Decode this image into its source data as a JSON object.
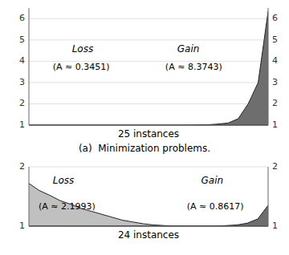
{
  "chart_data": [
    {
      "type": "area",
      "title": "(a)  Minimization problems.",
      "xlabel": "25 instances",
      "x": [
        1,
        2,
        3,
        4,
        5,
        6,
        7,
        8,
        9,
        10,
        11,
        12,
        13,
        14,
        15,
        16,
        17,
        18,
        19,
        20,
        21,
        22,
        23,
        24,
        25
      ],
      "xlim": [
        1,
        25
      ],
      "ylim": [
        1,
        6.5
      ],
      "yticks": [
        1,
        2,
        3,
        4,
        5,
        6
      ],
      "baseline": 1.0,
      "grid": true,
      "tick_labels": "y",
      "annotations": [
        "Loss",
        "(A ≈ 0.3451)",
        "Gain",
        "(A ≈ 8.3743)"
      ],
      "series": [
        {
          "color": "#6e6e6e",
          "values": [
            1.0,
            1.0,
            1.0,
            1.0,
            1.0,
            1.0,
            1.0,
            1.0,
            1.0,
            1.0,
            1.0,
            1.0,
            1.0,
            1.0,
            1.0,
            1.0,
            1.0,
            1.01,
            1.02,
            1.05,
            1.1,
            1.3,
            2.0,
            3.0,
            6.35
          ]
        }
      ]
    },
    {
      "type": "area",
      "xlabel": "24 instances",
      "x": [
        1,
        2,
        3,
        4,
        5,
        6,
        7,
        8,
        9,
        10,
        11,
        12,
        13,
        14,
        15,
        16,
        17,
        18,
        19,
        20,
        21,
        22,
        23,
        24
      ],
      "xlim": [
        1,
        24
      ],
      "ylim": [
        1,
        2
      ],
      "yticks": [
        1,
        2
      ],
      "baseline": 1.0,
      "grid": true,
      "tick_labels": "y",
      "annotations": [
        "Loss",
        "(A ≈ 2.1993)",
        "Gain",
        "(A ≈ 0.8617)"
      ],
      "series": [
        {
          "color": "#c0c0c0",
          "values": [
            1.72,
            1.6,
            1.52,
            1.43,
            1.37,
            1.3,
            1.25,
            1.2,
            1.15,
            1.1,
            1.07,
            1.04,
            1.02,
            1.01,
            1.0,
            1.0,
            1.0,
            1.0,
            1.0,
            1.0,
            1.0,
            1.0,
            1.0,
            1.0
          ]
        },
        {
          "color": "#6e6e6e",
          "values": [
            1.0,
            1.0,
            1.0,
            1.0,
            1.0,
            1.0,
            1.0,
            1.0,
            1.0,
            1.0,
            1.0,
            1.0,
            1.0,
            1.0,
            1.0,
            1.0,
            1.0,
            1.0,
            1.0,
            1.01,
            1.02,
            1.05,
            1.12,
            1.35
          ]
        }
      ]
    }
  ]
}
